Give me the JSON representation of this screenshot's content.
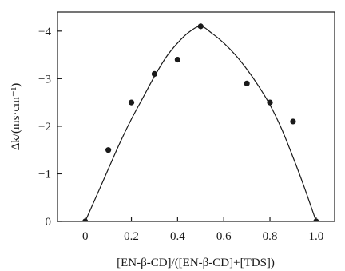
{
  "chart_data": {
    "type": "scatter",
    "title": "",
    "xlabel": "[EN-β-CD]/([EN-β-CD]+[TDS])",
    "ylabel": "Δk/(ms·cm⁻¹)",
    "xlim": [
      -0.12,
      1.08
    ],
    "ylim": [
      0,
      -4.4
    ],
    "x_ticks": [
      0,
      0.2,
      0.4,
      0.6,
      0.8,
      1.0
    ],
    "x_tick_labels": [
      "0",
      "0.2",
      "0.4",
      "0.6",
      "0.8",
      "1.0"
    ],
    "y_ticks": [
      0,
      -1,
      -2,
      -3,
      -4
    ],
    "y_tick_labels": [
      "0",
      "−1",
      "−2",
      "−3",
      "−4"
    ],
    "grid": false,
    "legend": "none",
    "series": [
      {
        "kind": "points",
        "x": [
          0,
          0.1,
          0.2,
          0.3,
          0.4,
          0.5,
          0.7,
          0.8,
          0.9,
          1.0
        ],
        "y": [
          0,
          -1.5,
          -2.5,
          -3.1,
          -3.4,
          -4.1,
          -2.9,
          -2.5,
          -2.1,
          0
        ]
      },
      {
        "kind": "fitted-curve",
        "x": [
          0,
          0.05,
          0.1,
          0.15,
          0.2,
          0.25,
          0.3,
          0.35,
          0.4,
          0.45,
          0.5,
          0.55,
          0.6,
          0.65,
          0.7,
          0.75,
          0.8,
          0.85,
          0.9,
          0.95,
          1.0
        ],
        "y": [
          0,
          -0.55,
          -1.1,
          -1.65,
          -2.15,
          -2.6,
          -3.05,
          -3.45,
          -3.75,
          -3.98,
          -4.1,
          -3.95,
          -3.75,
          -3.5,
          -3.2,
          -2.85,
          -2.45,
          -1.95,
          -1.35,
          -0.7,
          0
        ]
      }
    ],
    "colors": {
      "ink": "#1a1a1a",
      "background": "#ffffff"
    }
  }
}
